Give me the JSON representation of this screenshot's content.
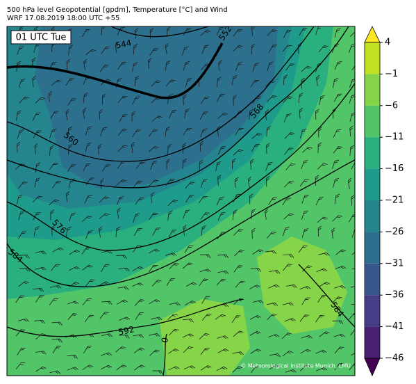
{
  "header": {
    "title": "500 hPa level Geopotential [gpdm], Temperature [°C] and Wind",
    "subtitle": "WRF 17.08.2019 18:00 UTC +55"
  },
  "map": {
    "time_label": "01 UTC Tue",
    "contour_labels": [
      "544",
      "552",
      "560",
      "568",
      "576",
      "584",
      "584",
      "592",
      "0"
    ],
    "copyright": "© Meteorological Institute Munich, LMU"
  },
  "colorbar": {
    "ticks": [
      4,
      {
        "value": -1,
        "label": "−1"
      },
      {
        "value": -6,
        "label": "−6"
      },
      {
        "value": -11,
        "label": "−11"
      },
      {
        "value": -16,
        "label": "−16"
      },
      {
        "value": -21,
        "label": "−21"
      },
      {
        "value": -26,
        "label": "−26"
      },
      {
        "value": -31,
        "label": "−31"
      },
      {
        "value": -36,
        "label": "−36"
      },
      {
        "value": -41,
        "label": "−41"
      },
      {
        "value": -46,
        "label": "−46"
      }
    ],
    "colors": [
      "#fde725",
      "#c2df23",
      "#86d549",
      "#52c569",
      "#2ab07f",
      "#1e9b8a",
      "#25858e",
      "#2d708e",
      "#38588c",
      "#433e85",
      "#482173",
      "#440154"
    ]
  }
}
